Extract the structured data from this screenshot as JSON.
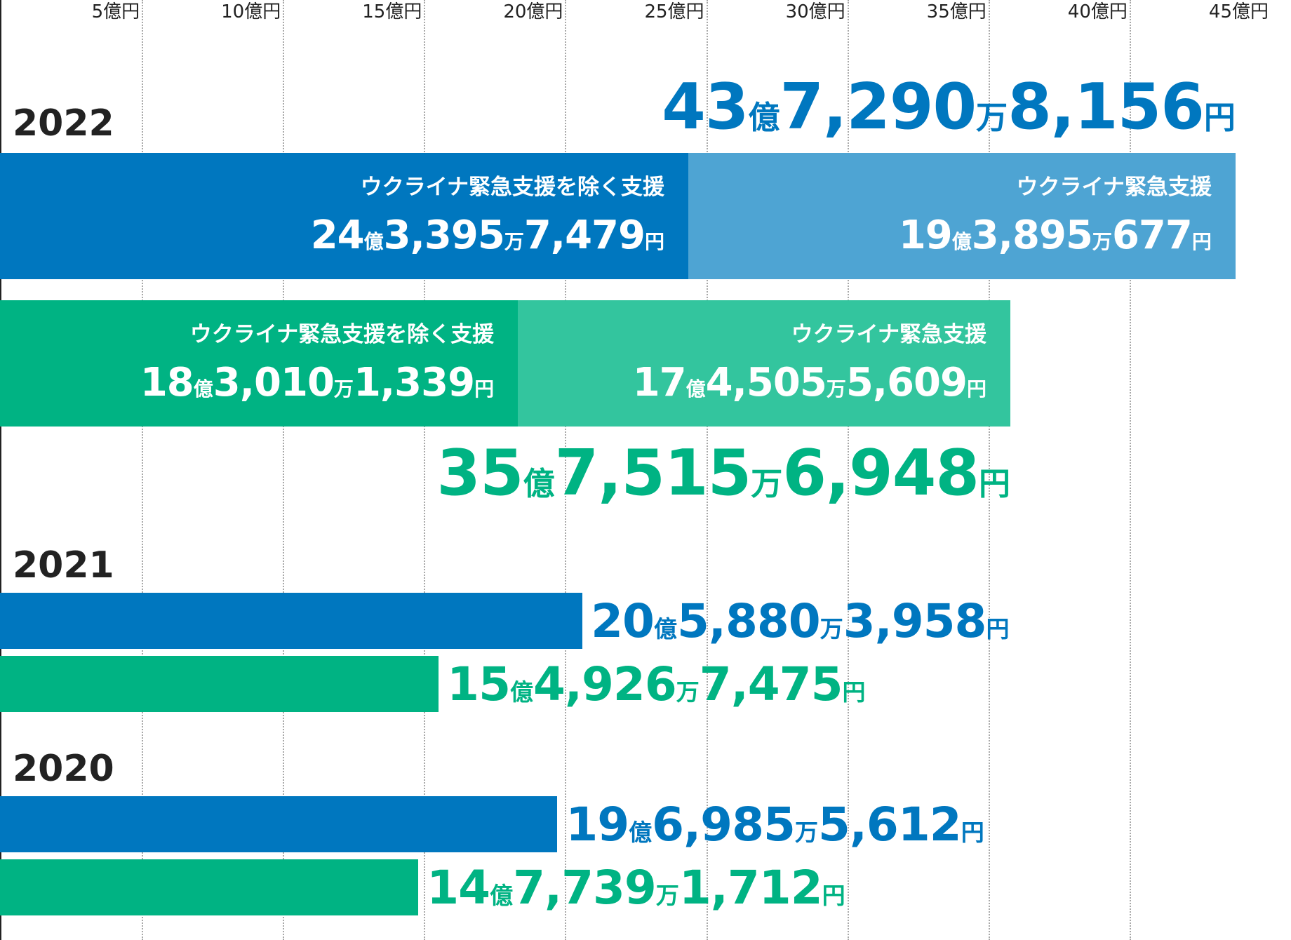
{
  "chart_data": {
    "type": "bar",
    "orientation": "horizontal",
    "stacked": true,
    "x_ticks": [
      "5億円",
      "10億円",
      "15億円",
      "20億円",
      "25億円",
      "30億円",
      "35億円",
      "40億円",
      "45億円"
    ],
    "xlim": [
      0,
      45
    ],
    "x_unit": "億円",
    "grid": true,
    "colors": {
      "blue_main": "#0077bf",
      "blue_light": "#4ea4d3",
      "green_main": "#00b383",
      "green_light": "#33c59e"
    },
    "groups": [
      {
        "year": "2022",
        "bars": [
          {
            "color": "blue",
            "total_label": {
              "n1": "43",
              "u1": "億",
              "n2": "7,290",
              "u2": "万",
              "n3": "8,156",
              "u3": "円"
            },
            "segments": [
              {
                "name": "ウクライナ緊急支援を除く支援",
                "value": 24.33957479,
                "label": {
                  "n1": "24",
                  "u1": "億",
                  "n2": "3,395",
                  "u2": "万",
                  "n3": "7,479",
                  "u3": "円"
                }
              },
              {
                "name": "ウクライナ緊急支援",
                "value": 19.38950677,
                "label": {
                  "n1": "19",
                  "u1": "億",
                  "n2": "3,895",
                  "u2": "万",
                  "n3": "677",
                  "u3": "円"
                }
              }
            ]
          },
          {
            "color": "green",
            "total_label": {
              "n1": "35",
              "u1": "億",
              "n2": "7,515",
              "u2": "万",
              "n3": "6,948",
              "u3": "円"
            },
            "segments": [
              {
                "name": "ウクライナ緊急支援を除く支援",
                "value": 18.30101339,
                "label": {
                  "n1": "18",
                  "u1": "億",
                  "n2": "3,010",
                  "u2": "万",
                  "n3": "1,339",
                  "u3": "円"
                }
              },
              {
                "name": "ウクライナ緊急支援",
                "value": 17.45055609,
                "label": {
                  "n1": "17",
                  "u1": "億",
                  "n2": "4,505",
                  "u2": "万",
                  "n3": "5,609",
                  "u3": "円"
                }
              }
            ]
          }
        ]
      },
      {
        "year": "2021",
        "bars": [
          {
            "color": "blue",
            "value": 20.58803958,
            "label": {
              "n1": "20",
              "u1": "億",
              "n2": "5,880",
              "u2": "万",
              "n3": "3,958",
              "u3": "円"
            }
          },
          {
            "color": "green",
            "value": 15.49267475,
            "label": {
              "n1": "15",
              "u1": "億",
              "n2": "4,926",
              "u2": "万",
              "n3": "7,475",
              "u3": "円"
            }
          }
        ]
      },
      {
        "year": "2020",
        "bars": [
          {
            "color": "blue",
            "value": 19.69855612,
            "label": {
              "n1": "19",
              "u1": "億",
              "n2": "6,985",
              "u2": "万",
              "n3": "5,612",
              "u3": "円"
            }
          },
          {
            "color": "green",
            "value": 14.77391712,
            "label": {
              "n1": "14",
              "u1": "億",
              "n2": "7,739",
              "u2": "万",
              "n3": "1,712",
              "u3": "円"
            }
          }
        ]
      }
    ]
  }
}
